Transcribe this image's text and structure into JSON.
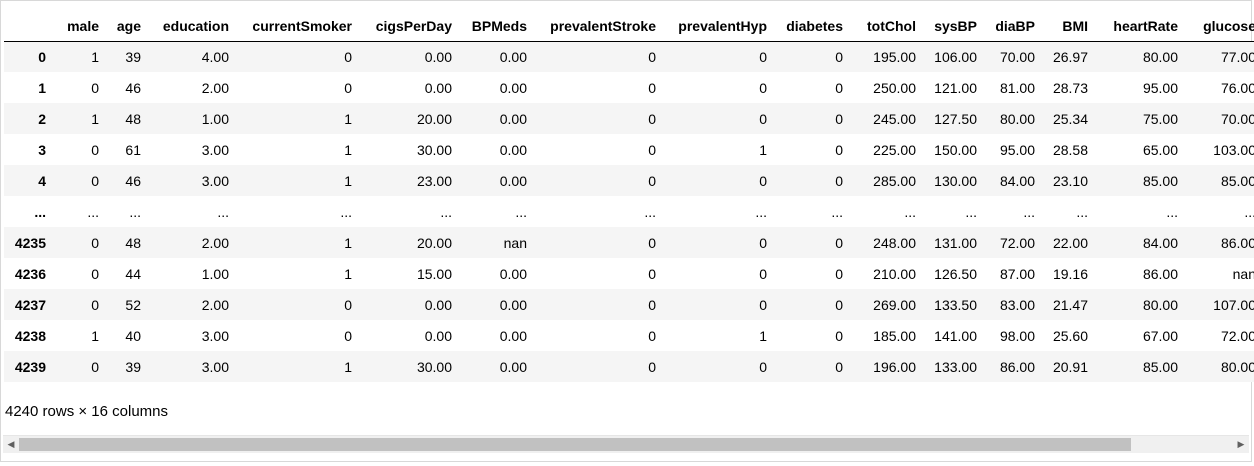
{
  "dataframe": {
    "columns": [
      "",
      "male",
      "age",
      "education",
      "currentSmoker",
      "cigsPerDay",
      "BPMeds",
      "prevalentStroke",
      "prevalentHyp",
      "diabetes",
      "totChol",
      "sysBP",
      "diaBP",
      "BMI",
      "heartRate",
      "glucose"
    ],
    "rows": [
      [
        "0",
        "1",
        "39",
        "4.00",
        "0",
        "0.00",
        "0.00",
        "0",
        "0",
        "0",
        "195.00",
        "106.00",
        "70.00",
        "26.97",
        "80.00",
        "77.00"
      ],
      [
        "1",
        "0",
        "46",
        "2.00",
        "0",
        "0.00",
        "0.00",
        "0",
        "0",
        "0",
        "250.00",
        "121.00",
        "81.00",
        "28.73",
        "95.00",
        "76.00"
      ],
      [
        "2",
        "1",
        "48",
        "1.00",
        "1",
        "20.00",
        "0.00",
        "0",
        "0",
        "0",
        "245.00",
        "127.50",
        "80.00",
        "25.34",
        "75.00",
        "70.00"
      ],
      [
        "3",
        "0",
        "61",
        "3.00",
        "1",
        "30.00",
        "0.00",
        "0",
        "1",
        "0",
        "225.00",
        "150.00",
        "95.00",
        "28.58",
        "65.00",
        "103.00"
      ],
      [
        "4",
        "0",
        "46",
        "3.00",
        "1",
        "23.00",
        "0.00",
        "0",
        "0",
        "0",
        "285.00",
        "130.00",
        "84.00",
        "23.10",
        "85.00",
        "85.00"
      ],
      [
        "...",
        "...",
        "...",
        "...",
        "...",
        "...",
        "...",
        "...",
        "...",
        "...",
        "...",
        "...",
        "...",
        "...",
        "...",
        "..."
      ],
      [
        "4235",
        "0",
        "48",
        "2.00",
        "1",
        "20.00",
        "nan",
        "0",
        "0",
        "0",
        "248.00",
        "131.00",
        "72.00",
        "22.00",
        "84.00",
        "86.00"
      ],
      [
        "4236",
        "0",
        "44",
        "1.00",
        "1",
        "15.00",
        "0.00",
        "0",
        "0",
        "0",
        "210.00",
        "126.50",
        "87.00",
        "19.16",
        "86.00",
        "nan"
      ],
      [
        "4237",
        "0",
        "52",
        "2.00",
        "0",
        "0.00",
        "0.00",
        "0",
        "0",
        "0",
        "269.00",
        "133.50",
        "83.00",
        "21.47",
        "80.00",
        "107.00"
      ],
      [
        "4238",
        "1",
        "40",
        "3.00",
        "0",
        "0.00",
        "0.00",
        "0",
        "1",
        "0",
        "185.00",
        "141.00",
        "98.00",
        "25.60",
        "67.00",
        "72.00"
      ],
      [
        "4239",
        "0",
        "39",
        "3.00",
        "1",
        "30.00",
        "0.00",
        "0",
        "0",
        "0",
        "196.00",
        "133.00",
        "86.00",
        "20.91",
        "85.00",
        "80.00"
      ]
    ],
    "caption": "4240 rows × 16 columns"
  },
  "scrollbar": {
    "left_arrow_icon": "◀",
    "right_arrow_icon": "▶",
    "colors": {
      "track": "#f0f0f0",
      "thumb": "#c1c1c1"
    }
  },
  "colors": {
    "odd_row": "#f5f5f5",
    "even_row": "#ffffff"
  }
}
